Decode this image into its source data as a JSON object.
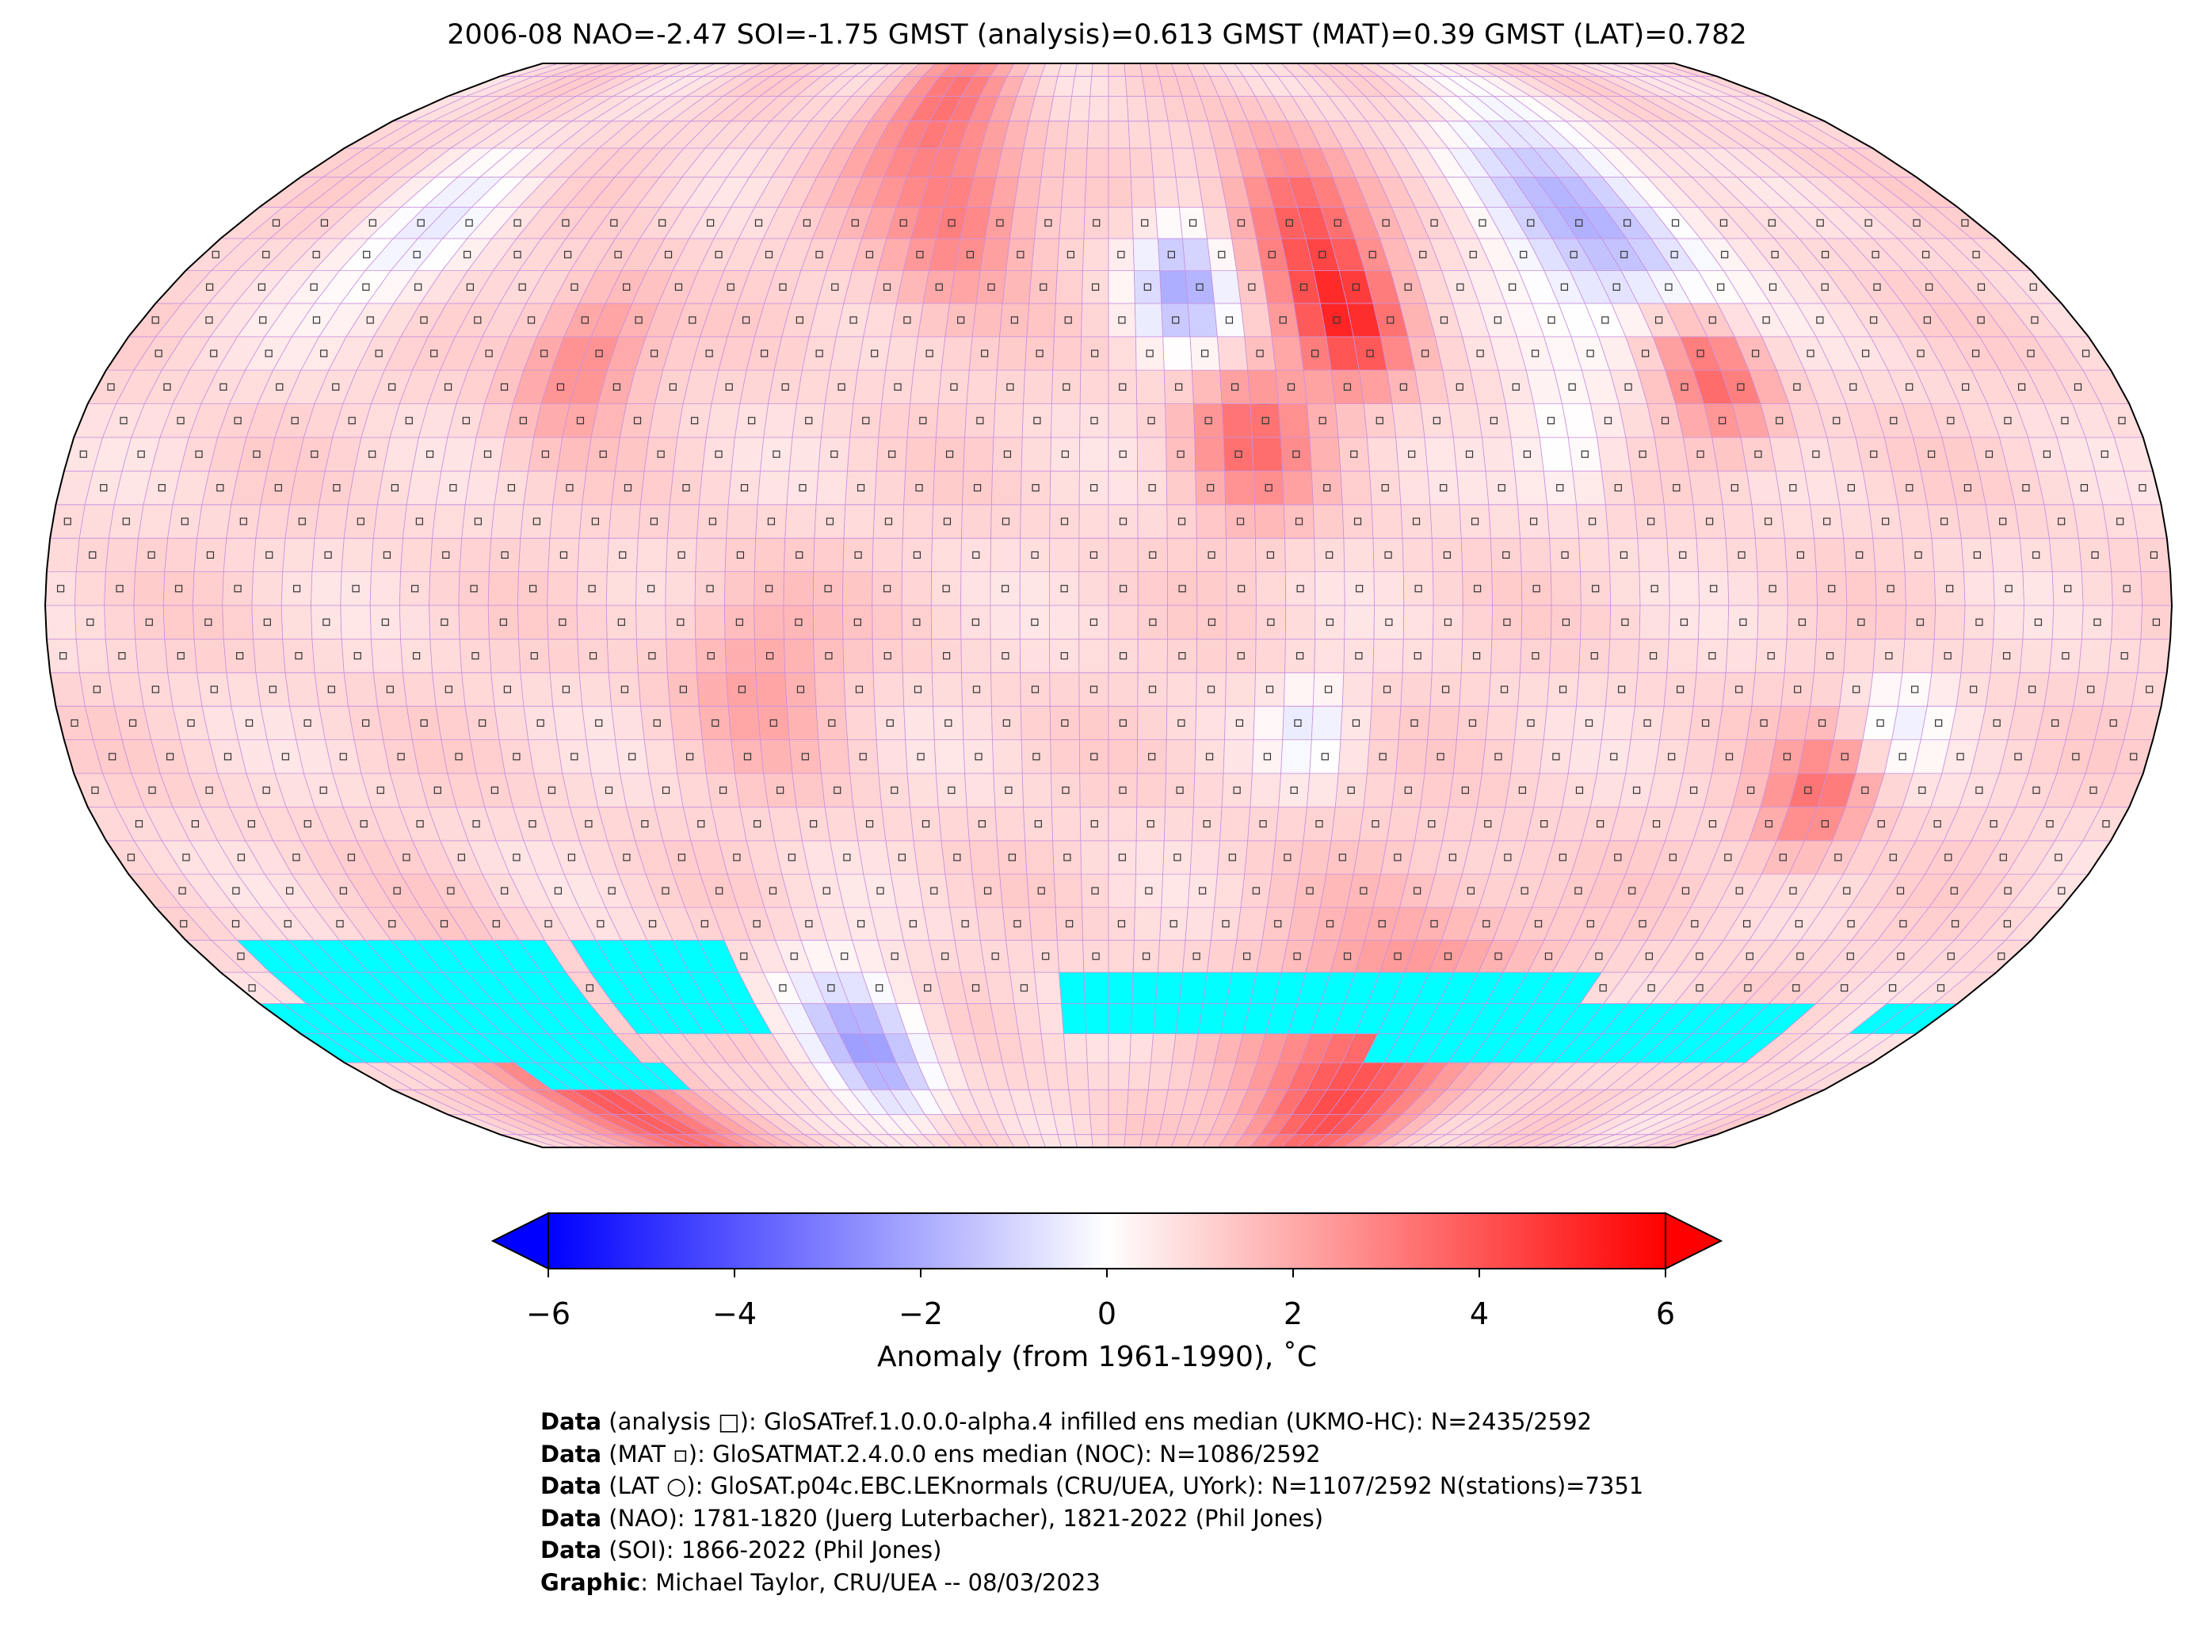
{
  "title": "2006-08 NAO=-2.47 SOI=-1.75 GMST (analysis)=0.613 GMST (MAT)=0.39 GMST (LAT)=0.782",
  "map": {
    "projection": "Robinson",
    "grid_resolution_deg": 5,
    "missing_color": "#00ffff",
    "gridline_color": "#c890e0"
  },
  "colorbar": {
    "range": [
      -6,
      6
    ],
    "colors": {
      "low": "#0000ff",
      "mid": "#ffffff",
      "high": "#ff0000"
    },
    "extend": "both",
    "ticks": [
      {
        "value": -6,
        "label": "−6"
      },
      {
        "value": -4,
        "label": "−4"
      },
      {
        "value": -2,
        "label": "−2"
      },
      {
        "value": 0,
        "label": "0"
      },
      {
        "value": 2,
        "label": "2"
      },
      {
        "value": 4,
        "label": "4"
      },
      {
        "value": 6,
        "label": "6"
      }
    ],
    "label": "Anomaly (from 1961-1990), ˚C"
  },
  "footer": [
    {
      "bold": "Data",
      "text": " (analysis □): GloSATref.1.0.0.0-alpha.4 infilled ens median (UKMO-HC): N=2435/2592"
    },
    {
      "bold": "Data",
      "text": " (MAT ▫): GloSATMAT.2.4.0.0 ens median (NOC): N=1086/2592"
    },
    {
      "bold": "Data",
      "text": " (LAT ○): GloSAT.p04c.EBC.LEKnormals (CRU/UEA, UYork): N=1107/2592 N(stations)=7351"
    },
    {
      "bold": "Data",
      "text": " (NAO): 1781-1820 (Juerg Luterbacher), 1821-2022 (Phil Jones)"
    },
    {
      "bold": "Data",
      "text": " (SOI): 1866-2022 (Phil Jones)"
    },
    {
      "bold": "Graphic",
      "text": ": Michael Taylor, CRU/UEA -- 08/03/2023"
    }
  ]
}
